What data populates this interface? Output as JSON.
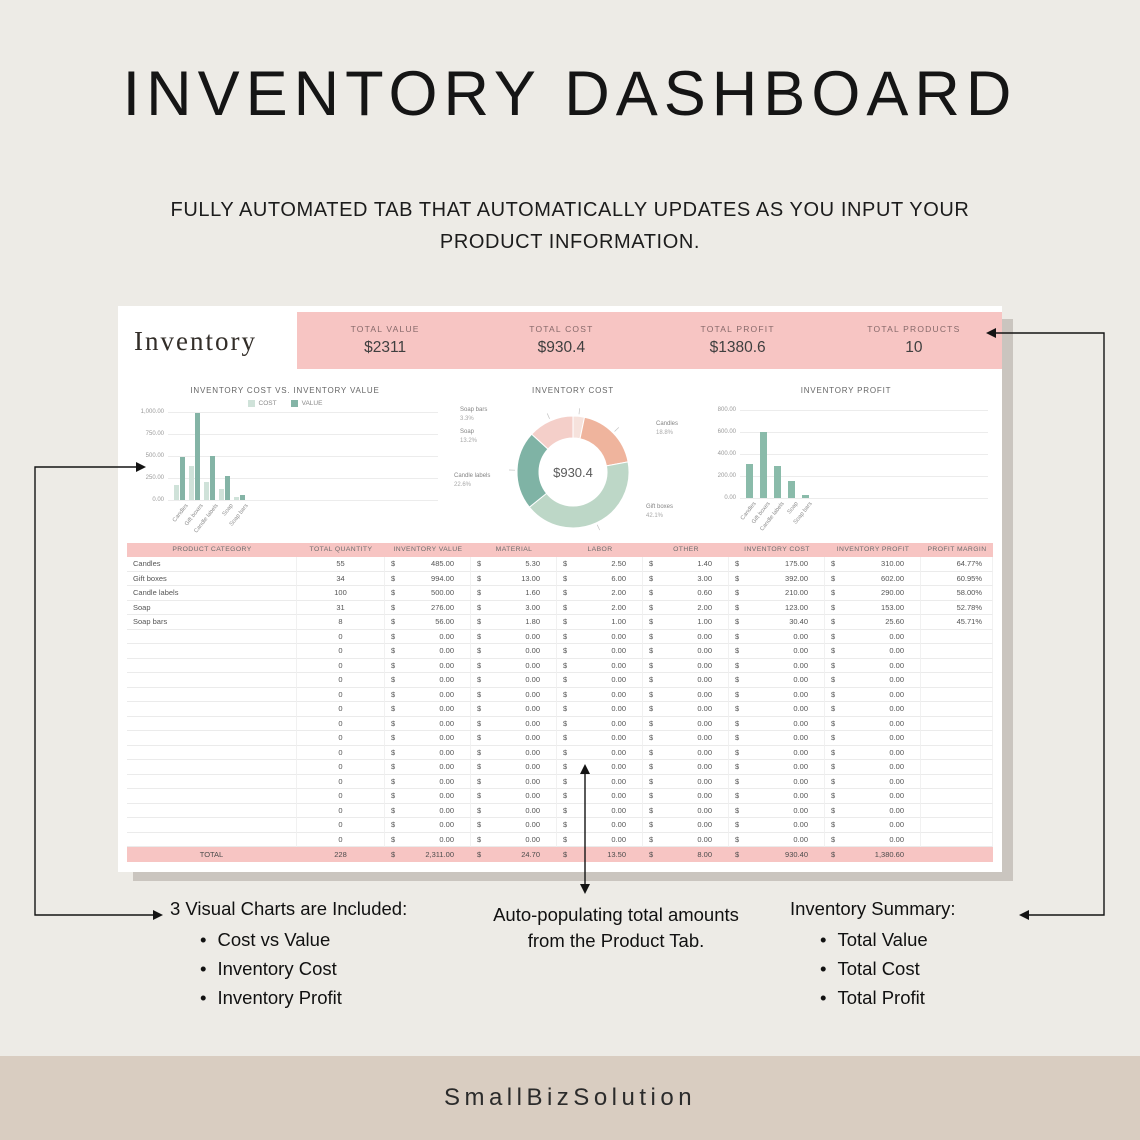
{
  "page": {
    "title": "INVENTORY DASHBOARD",
    "subtitle_lines": [
      "FULLY AUTOMATED TAB THAT AUTOMATICALLY UPDATES AS YOU INPUT YOUR",
      "PRODUCT INFORMATION."
    ],
    "footer_brand": "SmallBizSolution"
  },
  "colors": {
    "page_bg": "#edebe6",
    "pink": "#f7c5c3",
    "footer_bg": "#d9cdc1",
    "arrow": "#141414",
    "teal": "#84b4a6",
    "mint": "#cfe2d9"
  },
  "dashboard": {
    "sheet_title": "Inventory",
    "stats": [
      {
        "label": "TOTAL VALUE",
        "value": "$2311"
      },
      {
        "label": "TOTAL COST",
        "value": "$930.4"
      },
      {
        "label": "TOTAL PROFIT",
        "value": "$1380.6"
      },
      {
        "label": "TOTAL PRODUCTS",
        "value": "10"
      }
    ],
    "table": {
      "columns": [
        {
          "label": "PRODUCT CATEGORY",
          "type": "text"
        },
        {
          "label": "TOTAL QUANTITY",
          "type": "num"
        },
        {
          "label": "INVENTORY VALUE",
          "type": "money"
        },
        {
          "label": "MATERIAL",
          "type": "money"
        },
        {
          "label": "LABOR",
          "type": "money"
        },
        {
          "label": "OTHER",
          "type": "money"
        },
        {
          "label": "INVENTORY COST",
          "type": "money"
        },
        {
          "label": "INVENTORY PROFIT",
          "type": "money"
        },
        {
          "label": "PROFIT MARGIN",
          "type": "pct"
        }
      ],
      "rows": [
        [
          "Candles",
          "55",
          "485.00",
          "5.30",
          "2.50",
          "1.40",
          "175.00",
          "310.00",
          "64.77%"
        ],
        [
          "Gift boxes",
          "34",
          "994.00",
          "13.00",
          "6.00",
          "3.00",
          "392.00",
          "602.00",
          "60.95%"
        ],
        [
          "Candle labels",
          "100",
          "500.00",
          "1.60",
          "2.00",
          "0.60",
          "210.00",
          "290.00",
          "58.00%"
        ],
        [
          "Soap",
          "31",
          "276.00",
          "3.00",
          "2.00",
          "2.00",
          "123.00",
          "153.00",
          "52.78%"
        ],
        [
          "Soap bars",
          "8",
          "56.00",
          "1.80",
          "1.00",
          "1.00",
          "30.40",
          "25.60",
          "45.71%"
        ]
      ],
      "empty_row": [
        "",
        "0",
        "0.00",
        "0.00",
        "0.00",
        "0.00",
        "0.00",
        "0.00",
        ""
      ],
      "empty_row_count": 15,
      "total_row": [
        "TOTAL",
        "228",
        "2,311.00",
        "24.70",
        "13.50",
        "8.00",
        "930.40",
        "1,380.60",
        ""
      ]
    }
  },
  "chart_data": [
    {
      "type": "bar",
      "title": "INVENTORY COST VS. INVENTORY VALUE",
      "categories": [
        "Candles",
        "Gift boxes",
        "Candle labels",
        "Soap",
        "Soap bars"
      ],
      "series": [
        {
          "name": "COST",
          "color": "#cfe2d9",
          "values": [
            175,
            392,
            210,
            123,
            30.4
          ]
        },
        {
          "name": "VALUE",
          "color": "#84b4a6",
          "values": [
            485,
            994,
            500,
            276,
            56
          ]
        }
      ],
      "ylim": [
        0,
        1000
      ],
      "yticks": [
        "1,000.00",
        "750.00",
        "500.00",
        "250.00",
        "0.00"
      ],
      "legend_position": "top",
      "grid": true
    },
    {
      "type": "pie",
      "title": "INVENTORY COST",
      "center_label": "$930.4",
      "slices": [
        {
          "label": "Soap bars",
          "pct": 3.3,
          "color": "#f6e2dc"
        },
        {
          "label": "Candles",
          "pct": 18.8,
          "color": "#efb49d"
        },
        {
          "label": "Gift boxes",
          "pct": 42.1,
          "color": "#bdd7c7"
        },
        {
          "label": "Candle labels",
          "pct": 22.6,
          "color": "#7fb3a5"
        },
        {
          "label": "Soap",
          "pct": 13.2,
          "color": "#f4cfc9"
        }
      ]
    },
    {
      "type": "bar",
      "title": "INVENTORY PROFIT",
      "categories": [
        "Candles",
        "Gift boxes",
        "Candle labels",
        "Soap",
        "Soap bars"
      ],
      "series": [
        {
          "name": "PROFIT",
          "color": "#8abbaa",
          "values": [
            310,
            602,
            290,
            153,
            25.6
          ]
        }
      ],
      "ylim": [
        0,
        800
      ],
      "yticks": [
        "800.00",
        "600.00",
        "400.00",
        "200.00",
        "0.00"
      ],
      "legend_position": "none",
      "grid": true
    }
  ],
  "annotations": {
    "left": {
      "title": "3 Visual Charts are Included:",
      "items": [
        "Cost vs Value",
        "Inventory Cost",
        "Inventory Profit"
      ]
    },
    "middle": {
      "lines": [
        "Auto-populating total amounts",
        "from the Product Tab."
      ]
    },
    "right": {
      "title": "Inventory Summary:",
      "items": [
        "Total Value",
        "Total Cost",
        "Total Profit"
      ]
    }
  }
}
